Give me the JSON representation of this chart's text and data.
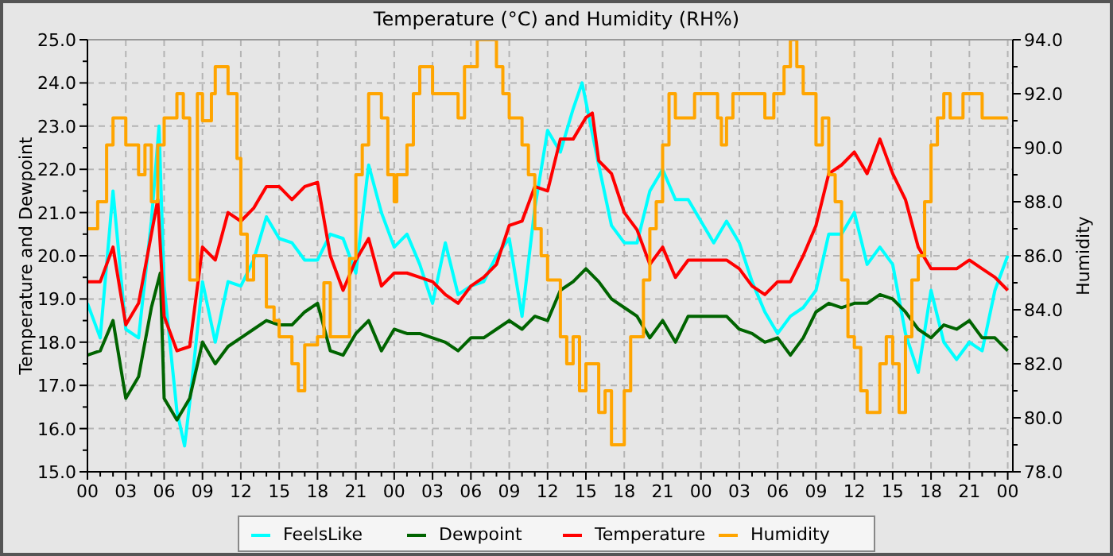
{
  "chart_data": {
    "type": "line",
    "title": "Temperature (°C) and Humidity (RH%)",
    "ylabel": "Temperature and Dewpoint",
    "y2label": "Humidity",
    "xlim": [
      0,
      72.4
    ],
    "ylim": [
      15,
      25
    ],
    "y2lim": [
      78,
      94
    ],
    "xticks": [
      {
        "value": 0,
        "label": "00"
      },
      {
        "value": 1,
        "label": null
      },
      {
        "value": 2,
        "label": null
      },
      {
        "value": 3,
        "label": "03"
      },
      {
        "value": 4,
        "label": null
      },
      {
        "value": 5,
        "label": null
      },
      {
        "value": 6,
        "label": "06"
      },
      {
        "value": 7,
        "label": null
      },
      {
        "value": 8,
        "label": null
      },
      {
        "value": 9,
        "label": "09"
      },
      {
        "value": 10,
        "label": null
      },
      {
        "value": 11,
        "label": null
      },
      {
        "value": 12,
        "label": "12"
      },
      {
        "value": 13,
        "label": null
      },
      {
        "value": 14,
        "label": null
      },
      {
        "value": 15,
        "label": "15"
      },
      {
        "value": 16,
        "label": null
      },
      {
        "value": 17,
        "label": null
      },
      {
        "value": 18,
        "label": "18"
      },
      {
        "value": 19,
        "label": null
      },
      {
        "value": 20,
        "label": null
      },
      {
        "value": 21,
        "label": "21"
      },
      {
        "value": 22,
        "label": null
      },
      {
        "value": 23,
        "label": null
      },
      {
        "value": 24,
        "label": "00"
      },
      {
        "value": 25,
        "label": null
      },
      {
        "value": 26,
        "label": null
      },
      {
        "value": 27,
        "label": "03"
      },
      {
        "value": 28,
        "label": null
      },
      {
        "value": 29,
        "label": null
      },
      {
        "value": 30,
        "label": "06"
      },
      {
        "value": 31,
        "label": null
      },
      {
        "value": 32,
        "label": null
      },
      {
        "value": 33,
        "label": "09"
      },
      {
        "value": 34,
        "label": null
      },
      {
        "value": 35,
        "label": null
      },
      {
        "value": 36,
        "label": "12"
      },
      {
        "value": 37,
        "label": null
      },
      {
        "value": 38,
        "label": null
      },
      {
        "value": 39,
        "label": "15"
      },
      {
        "value": 40,
        "label": null
      },
      {
        "value": 41,
        "label": null
      },
      {
        "value": 42,
        "label": "18"
      },
      {
        "value": 43,
        "label": null
      },
      {
        "value": 44,
        "label": null
      },
      {
        "value": 45,
        "label": "21"
      },
      {
        "value": 46,
        "label": null
      },
      {
        "value": 47,
        "label": null
      },
      {
        "value": 48,
        "label": "00"
      },
      {
        "value": 49,
        "label": null
      },
      {
        "value": 50,
        "label": null
      },
      {
        "value": 51,
        "label": "03"
      },
      {
        "value": 52,
        "label": null
      },
      {
        "value": 53,
        "label": null
      },
      {
        "value": 54,
        "label": "06"
      },
      {
        "value": 55,
        "label": null
      },
      {
        "value": 56,
        "label": null
      },
      {
        "value": 57,
        "label": "09"
      },
      {
        "value": 58,
        "label": null
      },
      {
        "value": 59,
        "label": null
      },
      {
        "value": 60,
        "label": "12"
      },
      {
        "value": 61,
        "label": null
      },
      {
        "value": 62,
        "label": null
      },
      {
        "value": 63,
        "label": "15"
      },
      {
        "value": 64,
        "label": null
      },
      {
        "value": 65,
        "label": null
      },
      {
        "value": 66,
        "label": "18"
      },
      {
        "value": 67,
        "label": null
      },
      {
        "value": 68,
        "label": null
      },
      {
        "value": 69,
        "label": "21"
      },
      {
        "value": 70,
        "label": null
      },
      {
        "value": 71,
        "label": null
      },
      {
        "value": 72,
        "label": "00"
      }
    ],
    "yticks": [
      {
        "value": 15,
        "label": "15.0"
      },
      {
        "value": 15.5,
        "label": null
      },
      {
        "value": 16,
        "label": "16.0"
      },
      {
        "value": 16.5,
        "label": null
      },
      {
        "value": 17,
        "label": "17.0"
      },
      {
        "value": 17.5,
        "label": null
      },
      {
        "value": 18,
        "label": "18.0"
      },
      {
        "value": 18.5,
        "label": null
      },
      {
        "value": 19,
        "label": "19.0"
      },
      {
        "value": 19.5,
        "label": null
      },
      {
        "value": 20,
        "label": "20.0"
      },
      {
        "value": 20.5,
        "label": null
      },
      {
        "value": 21,
        "label": "21.0"
      },
      {
        "value": 21.5,
        "label": null
      },
      {
        "value": 22,
        "label": "22.0"
      },
      {
        "value": 22.5,
        "label": null
      },
      {
        "value": 23,
        "label": "23.0"
      },
      {
        "value": 23.5,
        "label": null
      },
      {
        "value": 24,
        "label": "24.0"
      },
      {
        "value": 24.5,
        "label": null
      },
      {
        "value": 25,
        "label": "25.0"
      }
    ],
    "y2ticks": [
      {
        "value": 78,
        "label": "78.0"
      },
      {
        "value": 79,
        "label": null
      },
      {
        "value": 80,
        "label": "80.0"
      },
      {
        "value": 81,
        "label": null
      },
      {
        "value": 82,
        "label": "82.0"
      },
      {
        "value": 83,
        "label": null
      },
      {
        "value": 84,
        "label": "84.0"
      },
      {
        "value": 85,
        "label": null
      },
      {
        "value": 86,
        "label": "86.0"
      },
      {
        "value": 87,
        "label": null
      },
      {
        "value": 88,
        "label": "88.0"
      },
      {
        "value": 89,
        "label": null
      },
      {
        "value": 90,
        "label": "90.0"
      },
      {
        "value": 91,
        "label": null
      },
      {
        "value": 92,
        "label": "92.0"
      },
      {
        "value": 93,
        "label": null
      },
      {
        "value": 94,
        "label": "94.0"
      }
    ],
    "grid": true,
    "legend": "bottom",
    "marker": "none",
    "line_style": "solid",
    "series": [
      {
        "name": "FeelsLike",
        "color": "#00ffff",
        "x": [
          0,
          1,
          2,
          3,
          4,
          5,
          5.6,
          6,
          7,
          7.6,
          8,
          9,
          10,
          11,
          12,
          13,
          14,
          15,
          16,
          17,
          18,
          19,
          20,
          21,
          22,
          23,
          24,
          25,
          26,
          27,
          28,
          29,
          30,
          31,
          32,
          33,
          34,
          35,
          36,
          37,
          38,
          38.7,
          40,
          41,
          42,
          43,
          44,
          45,
          46,
          47,
          48,
          49,
          50,
          51,
          52,
          53,
          54,
          55,
          56,
          57,
          58,
          59,
          60,
          61,
          62,
          63,
          64,
          65,
          66,
          67,
          68,
          69,
          70,
          71,
          72
        ],
        "values": [
          18.9,
          18.1,
          21.5,
          18.3,
          18.1,
          20.8,
          23.0,
          19.3,
          16.4,
          15.6,
          16.6,
          19.4,
          18.0,
          19.4,
          19.3,
          19.9,
          20.9,
          20.4,
          20.3,
          19.9,
          19.9,
          20.5,
          20.4,
          19.6,
          22.1,
          21.0,
          20.2,
          20.5,
          19.8,
          18.9,
          20.3,
          19.1,
          19.3,
          19.4,
          20.0,
          20.4,
          18.6,
          21.1,
          22.9,
          22.4,
          23.4,
          24.0,
          22.1,
          20.7,
          20.3,
          20.3,
          21.5,
          22.0,
          21.3,
          21.3,
          20.8,
          20.3,
          20.8,
          20.3,
          19.4,
          18.7,
          18.2,
          18.6,
          18.8,
          19.2,
          20.5,
          20.5,
          21.0,
          19.8,
          20.2,
          19.8,
          18.2,
          17.3,
          19.2,
          18.0,
          17.6,
          18.0,
          17.8,
          19.2,
          20.0
        ]
      },
      {
        "name": "Dewpoint",
        "color": "#006400",
        "x": [
          0,
          1,
          2,
          3,
          4,
          5,
          5.7,
          6,
          7,
          8,
          9,
          10,
          11,
          12,
          13,
          14,
          15,
          16,
          17,
          18,
          19,
          20,
          21,
          22,
          23,
          24,
          25,
          26,
          27,
          28,
          29,
          30,
          31,
          32,
          33,
          34,
          35,
          36,
          37,
          38,
          39,
          40,
          41,
          42,
          43,
          44,
          45,
          46,
          47,
          48,
          49,
          50,
          51,
          52,
          53,
          54,
          55,
          56,
          57,
          58,
          59,
          60,
          61,
          62,
          63,
          64,
          65,
          66,
          67,
          68,
          69,
          70,
          71,
          72
        ],
        "values": [
          17.7,
          17.8,
          18.5,
          16.7,
          17.2,
          18.8,
          19.6,
          16.7,
          16.2,
          16.7,
          18.0,
          17.5,
          17.9,
          18.1,
          18.3,
          18.5,
          18.4,
          18.4,
          18.7,
          18.9,
          17.8,
          17.7,
          18.2,
          18.5,
          17.8,
          18.3,
          18.2,
          18.2,
          18.1,
          18.0,
          17.8,
          18.1,
          18.1,
          18.3,
          18.5,
          18.3,
          18.6,
          18.5,
          19.2,
          19.4,
          19.7,
          19.4,
          19.0,
          18.8,
          18.6,
          18.1,
          18.5,
          18.0,
          18.6,
          18.6,
          18.6,
          18.6,
          18.3,
          18.2,
          18.0,
          18.1,
          17.7,
          18.1,
          18.7,
          18.9,
          18.8,
          18.9,
          18.9,
          19.1,
          19.0,
          18.7,
          18.3,
          18.1,
          18.4,
          18.3,
          18.5,
          18.1,
          18.1,
          17.8
        ]
      },
      {
        "name": "Temperature",
        "color": "#ff0000",
        "x": [
          0,
          1,
          2,
          3,
          4,
          5,
          5.5,
          6,
          7,
          8,
          9,
          10,
          11,
          12,
          13,
          14,
          15,
          16,
          17,
          18,
          19,
          20,
          21,
          22,
          23,
          24,
          25,
          26,
          27,
          28,
          29,
          30,
          31,
          32,
          33,
          34,
          35,
          36,
          37,
          38,
          39,
          39.5,
          40,
          41,
          42,
          43,
          44,
          45,
          46,
          47,
          48,
          49,
          50,
          51,
          52,
          53,
          54,
          55,
          56,
          57,
          58,
          59,
          60,
          61,
          62,
          63,
          64,
          65,
          66,
          67,
          68,
          69,
          70,
          71,
          72
        ],
        "values": [
          19.4,
          19.4,
          20.2,
          18.4,
          18.9,
          20.5,
          21.3,
          18.6,
          17.8,
          17.9,
          20.2,
          19.9,
          21.0,
          20.8,
          21.1,
          21.6,
          21.6,
          21.3,
          21.6,
          21.7,
          20.0,
          19.2,
          19.9,
          20.4,
          19.3,
          19.6,
          19.6,
          19.5,
          19.4,
          19.1,
          18.9,
          19.3,
          19.5,
          19.8,
          20.7,
          20.8,
          21.6,
          21.5,
          22.7,
          22.7,
          23.2,
          23.3,
          22.2,
          21.9,
          21.0,
          20.6,
          19.8,
          20.2,
          19.5,
          19.9,
          19.9,
          19.9,
          19.9,
          19.7,
          19.3,
          19.1,
          19.4,
          19.4,
          20.0,
          20.7,
          21.9,
          22.1,
          22.4,
          21.9,
          22.7,
          21.9,
          21.3,
          20.2,
          19.7,
          19.7,
          19.7,
          19.9,
          19.7,
          19.5,
          19.2
        ]
      },
      {
        "name": "Humidity",
        "color": "#ffa500",
        "type": "step",
        "axis": "y2",
        "x": [
          0,
          0.8,
          1.5,
          2,
          3,
          4,
          4.5,
          5,
          5.5,
          6,
          7,
          7.5,
          8,
          8.6,
          9,
          9.7,
          10,
          11,
          11.7,
          12,
          12.5,
          13,
          14,
          14.6,
          15,
          16,
          16.5,
          17,
          18,
          18.5,
          19,
          20,
          20.5,
          21,
          21.5,
          22,
          23,
          23.5,
          24,
          24.2,
          25,
          25.5,
          26,
          27,
          28,
          29,
          29.5,
          30.5,
          31,
          32,
          32.5,
          33,
          34,
          34.5,
          35,
          35.5,
          36,
          37,
          37.5,
          38,
          38.5,
          39,
          40,
          40.5,
          41,
          42,
          42.5,
          43,
          43.5,
          44,
          44.5,
          45,
          45.5,
          46,
          47,
          47.5,
          49,
          49.3,
          49.6,
          50,
          50.5,
          52,
          53,
          53.7,
          54.5,
          55,
          55.5,
          56,
          57,
          57.5,
          58,
          58.5,
          59,
          59.5,
          60,
          60.5,
          61,
          62,
          62.5,
          63,
          63.5,
          64,
          64.5,
          65,
          65.5,
          66,
          66.5,
          67,
          67.5,
          68.5,
          70,
          72
        ],
        "values": [
          87.0,
          88.0,
          90.1,
          91.1,
          90.1,
          89.0,
          90.1,
          88.0,
          90.1,
          91.1,
          92.0,
          91.1,
          85.1,
          92.0,
          91.0,
          92.0,
          93.0,
          92.0,
          89.6,
          86.8,
          85.1,
          86.0,
          84.1,
          83.6,
          83.0,
          82.0,
          81.0,
          82.7,
          83.0,
          85.0,
          83.0,
          83.0,
          85.9,
          89.0,
          90.1,
          92.0,
          91.1,
          89.0,
          88.0,
          89.0,
          90.1,
          92.0,
          93.0,
          92.0,
          92.0,
          91.1,
          93.0,
          94.0,
          94.0,
          93.0,
          92.0,
          91.1,
          90.1,
          89.0,
          87.0,
          86.0,
          85.1,
          83.0,
          82.0,
          83.0,
          81.0,
          82.0,
          80.2,
          81.0,
          79.0,
          81.0,
          83.0,
          83.0,
          85.1,
          87.0,
          88.0,
          90.1,
          92.0,
          91.1,
          91.1,
          92.0,
          92.0,
          91.1,
          90.1,
          91.1,
          92.0,
          92.0,
          91.1,
          92.0,
          93.0,
          94.0,
          93.0,
          92.0,
          90.1,
          91.1,
          89.0,
          88.0,
          85.1,
          83.0,
          82.6,
          81.0,
          80.2,
          82.0,
          83.0,
          82.0,
          80.2,
          83.0,
          85.1,
          86.0,
          88.0,
          90.1,
          91.1,
          92.0,
          91.1,
          92.0,
          91.1,
          91.1
        ]
      }
    ]
  }
}
